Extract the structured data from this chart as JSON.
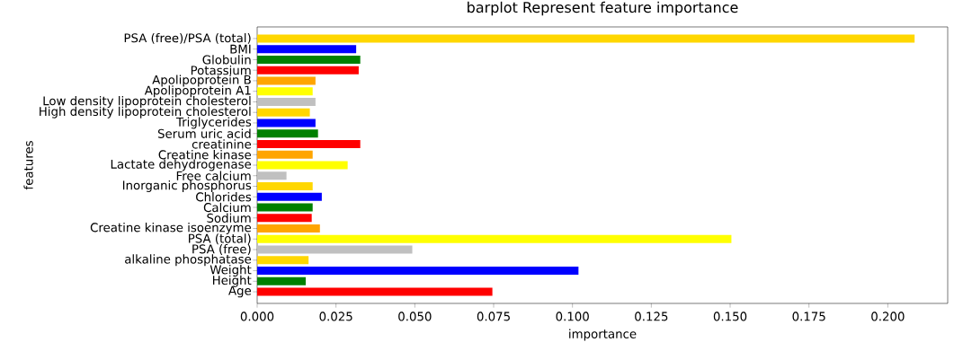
{
  "chart_data": {
    "type": "bar",
    "orientation": "horizontal",
    "title": "barplot Represent feature importance",
    "xlabel": "importance",
    "ylabel": "features",
    "categories": [
      "PSA (free)/PSA (total)",
      "BMI",
      "Globulin",
      "Potassium",
      "Apolipoprotein B",
      "Apolipoprotein A1",
      "Low density lipoprotein cholesterol",
      "High density lipoprotein cholesterol",
      "Triglycerides",
      "Serum uric acid",
      "creatinine",
      "Creatine kinase",
      "Lactate dehydrogenase",
      "Free calcium",
      "Inorganic phosphorus",
      "Chlorides",
      "Calcium",
      "Sodium",
      "Creatine kinase isoenzyme",
      "PSA (total)",
      "PSA (free)",
      "alkaline phosphatase",
      "Weight",
      "Height",
      "Age"
    ],
    "values": [
      0.2085,
      0.0314,
      0.0327,
      0.0322,
      0.0185,
      0.0176,
      0.0185,
      0.0167,
      0.0185,
      0.0193,
      0.0327,
      0.0176,
      0.0287,
      0.0093,
      0.0176,
      0.0205,
      0.0176,
      0.0173,
      0.0199,
      0.1504,
      0.0492,
      0.0163,
      0.1019,
      0.0154,
      0.0746
    ],
    "colors": [
      "#ffd700",
      "#0000ff",
      "#008000",
      "#ff0000",
      "#ffa500",
      "#ffff00",
      "#c0c0c0",
      "#ffd700",
      "#0000ff",
      "#008000",
      "#ff0000",
      "#ffa500",
      "#ffff00",
      "#c0c0c0",
      "#ffd700",
      "#0000ff",
      "#008000",
      "#ff0000",
      "#ffa500",
      "#ffff00",
      "#c0c0c0",
      "#ffd700",
      "#0000ff",
      "#008000",
      "#ff0000"
    ],
    "xlim": [
      0,
      0.219
    ],
    "xticks": [
      {
        "value": 0,
        "label": "0.000"
      },
      {
        "value": 0.025,
        "label": "0.025"
      },
      {
        "value": 0.05,
        "label": "0.050"
      },
      {
        "value": 0.075,
        "label": "0.075"
      },
      {
        "value": 0.1,
        "label": "0.100"
      },
      {
        "value": 0.125,
        "label": "0.125"
      },
      {
        "value": 0.15,
        "label": "0.150"
      },
      {
        "value": 0.175,
        "label": "0.175"
      },
      {
        "value": 0.2,
        "label": "0.200"
      }
    ],
    "grid": false
  }
}
